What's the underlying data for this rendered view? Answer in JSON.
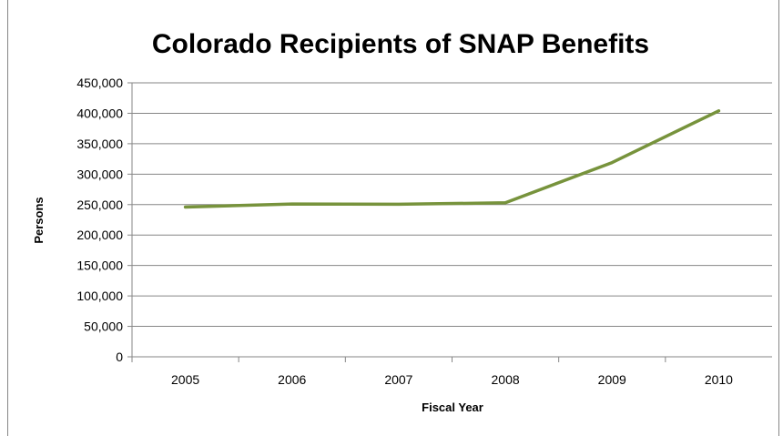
{
  "chart_data": {
    "type": "line",
    "title": "Colorado Recipients of SNAP Benefits",
    "xlabel": "Fiscal Year",
    "ylabel": "Persons",
    "categories": [
      "2005",
      "2006",
      "2007",
      "2008",
      "2009",
      "2010"
    ],
    "series": [
      {
        "values": [
          246000,
          251000,
          250500,
          253000,
          319000,
          404000
        ],
        "color": "#77933c"
      }
    ],
    "ylim": [
      0,
      450000
    ],
    "yticks": [
      0,
      50000,
      100000,
      150000,
      200000,
      250000,
      300000,
      350000,
      400000,
      450000
    ],
    "ytick_labels": [
      "0",
      "50,000",
      "100,000",
      "150,000",
      "200,000",
      "250,000",
      "300,000",
      "350,000",
      "400,000",
      "450,000"
    ],
    "grid": true,
    "legend": "none"
  }
}
